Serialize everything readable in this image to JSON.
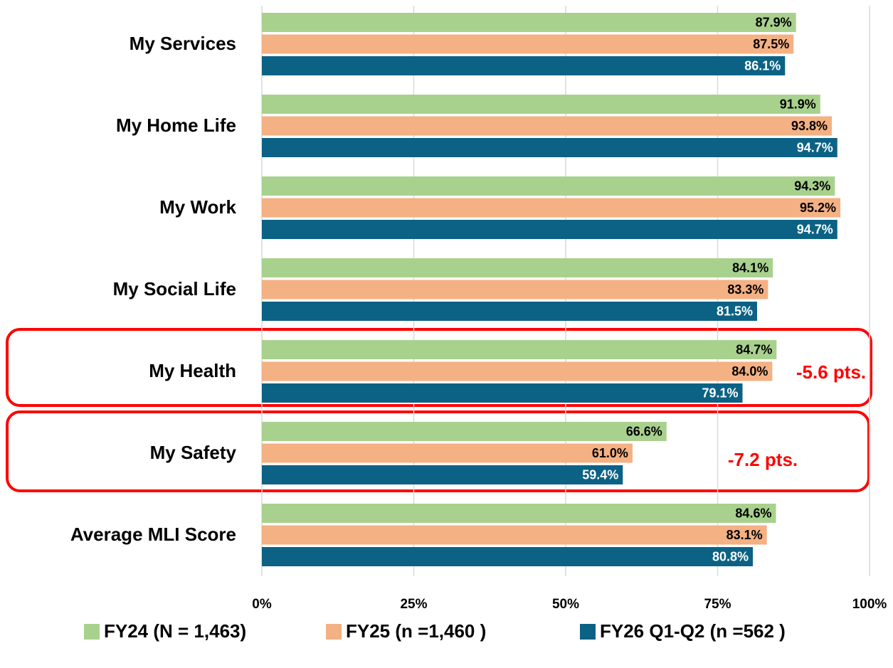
{
  "chart_data": {
    "type": "hbar",
    "categories": [
      "My Services",
      "My Home Life",
      "My Work",
      "My Social Life",
      "My Health",
      "My Safety",
      "Average MLI Score"
    ],
    "series": [
      {
        "name": "FY24 (N = 1,463)",
        "color": "#a9d18e",
        "values": [
          87.9,
          91.9,
          94.3,
          84.1,
          84.7,
          66.6,
          84.6
        ],
        "value_labels": [
          "87.9%",
          "91.9%",
          "94.3%",
          "84.1%",
          "84.7%",
          "66.6%",
          "84.6%"
        ]
      },
      {
        "name": "FY25 (n =1,460 )",
        "color": "#f4b183",
        "values": [
          87.5,
          93.8,
          95.2,
          83.3,
          84.0,
          61.0,
          83.1
        ],
        "value_labels": [
          "87.5%",
          "93.8%",
          "95.2%",
          "83.3%",
          "84.0%",
          "61.0%",
          "83.1%"
        ]
      },
      {
        "name": "FY26 Q1-Q2 (n =562 )",
        "color": "#0b6285",
        "values": [
          86.1,
          94.7,
          94.7,
          81.5,
          79.1,
          59.4,
          80.8
        ],
        "value_labels": [
          "86.1%",
          "94.7%",
          "94.7%",
          "81.5%",
          "79.1%",
          "59.4%",
          "80.8%"
        ]
      }
    ],
    "xlim": [
      0,
      100
    ],
    "xticks": [
      {
        "value": 0,
        "label": "0%"
      },
      {
        "value": 25,
        "label": "25%"
      },
      {
        "value": 50,
        "label": "50%"
      },
      {
        "value": 75,
        "label": "75%"
      },
      {
        "value": 100,
        "label": "100%"
      }
    ],
    "grid": true,
    "legend": "bottom",
    "annotations": [
      {
        "text": "-5.6 pts.",
        "category": "My Health",
        "color": "#ff0000"
      },
      {
        "text": "-7.2 pts.",
        "category": "My Safety",
        "color": "#ff0000"
      }
    ]
  }
}
